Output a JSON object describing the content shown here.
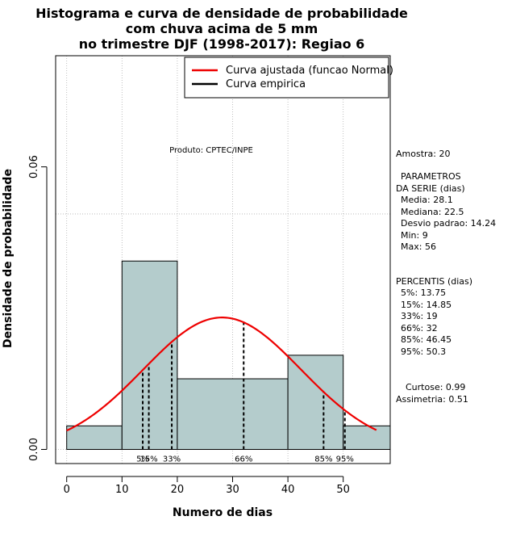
{
  "chart_data": {
    "type": "histogram",
    "title_lines": [
      "Histograma e curva de densidade de probabilidade",
      "com chuva acima de 5 mm",
      "no trimestre DJF (1998-2017): Regiao 6"
    ],
    "xlabel": "Numero de dias",
    "ylabel": "Densidade de probabilidade",
    "xlim": [
      -2,
      58.5
    ],
    "ylim": [
      -0.003,
      0.0836
    ],
    "x_ticks": [
      0,
      10,
      20,
      30,
      40,
      50
    ],
    "y_ticks": [
      0.0,
      0.06
    ],
    "y_tick_labels": [
      "0.00",
      "0.06"
    ],
    "grid_x": [
      0,
      10,
      20,
      30,
      40,
      50
    ],
    "grid_y": [
      0.0,
      0.05
    ],
    "bins": [
      {
        "start": 0,
        "end": 10,
        "density": 0.005
      },
      {
        "start": 10,
        "end": 20,
        "density": 0.04
      },
      {
        "start": 20,
        "end": 40,
        "density": 0.015
      },
      {
        "start": 40,
        "end": 50,
        "density": 0.02
      },
      {
        "start": 50,
        "end": 60,
        "density": 0.005
      }
    ],
    "normal_fit": {
      "mean": 28.1,
      "sd": 14.24,
      "x_from": 0,
      "x_to": 56
    },
    "percentiles": [
      {
        "label": "5%",
        "value": 13.75
      },
      {
        "label": "15%",
        "value": 14.85
      },
      {
        "label": "33%",
        "value": 19
      },
      {
        "label": "66%",
        "value": 32
      },
      {
        "label": "85%",
        "value": 46.45
      },
      {
        "label": "95%",
        "value": 50.3
      }
    ],
    "legend": {
      "position": "top-right",
      "entries": [
        {
          "label": "Curva ajustada (funcao Normal)",
          "color": "#ee0000"
        },
        {
          "label": "Curva empirica",
          "color": "#000000"
        }
      ]
    },
    "annotation": "Produto: CPTEC/INPE",
    "colors": {
      "bar_fill": "#b4cccc",
      "bar_stroke": "#000000",
      "curve": "#ee0000",
      "grid": "#b0b0b0"
    }
  },
  "side_panel": {
    "amostra": "Amostra: 20",
    "parametros_title_1": "PARAMETROS",
    "parametros_title_2": "DA SERIE (dias)",
    "media": "Media: 28.1",
    "mediana": "Mediana: 22.5",
    "desvio": "Desvio padrao: 14.24",
    "min": "Min: 9",
    "max": "Max: 56",
    "percentis_title": "PERCENTIS (dias)",
    "p5": "5%: 13.75",
    "p15": "15%: 14.85",
    "p33": "33%: 19",
    "p66": "66%: 32",
    "p85": "85%: 46.45",
    "p95": "95%: 50.3",
    "curtose": "Curtose: 0.99",
    "assimetria": "Assimetria: 0.51"
  }
}
